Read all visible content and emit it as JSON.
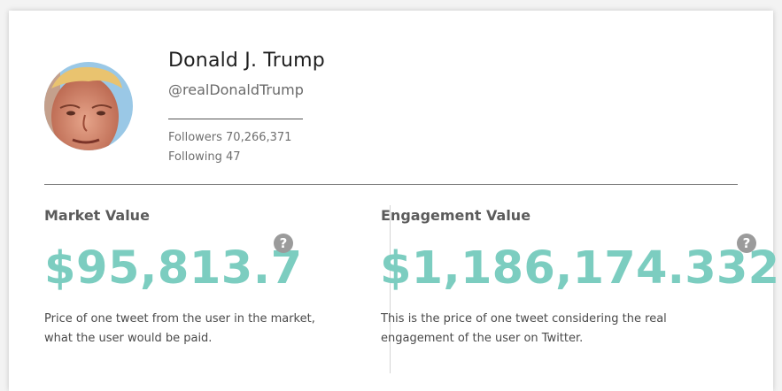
{
  "profile": {
    "name": "Donald J. Trump",
    "handle": "@realDonaldTrump",
    "followers": "Followers 70,266,371",
    "following": "Following 47"
  },
  "market": {
    "title": "Market Value",
    "value": "$95,813.7",
    "description": "Price of one tweet from the user in the market, what the user would be paid.",
    "help_icon": "question-circle-icon"
  },
  "engagement": {
    "title": "Engagement Value",
    "value": "$1,186,174.332",
    "description": "This is the price of one tweet considering the real engagement of the user on Twitter.",
    "help_icon": "question-circle-icon"
  },
  "colors": {
    "accent": "#7ccdc0",
    "help": "#9b9b9b"
  }
}
